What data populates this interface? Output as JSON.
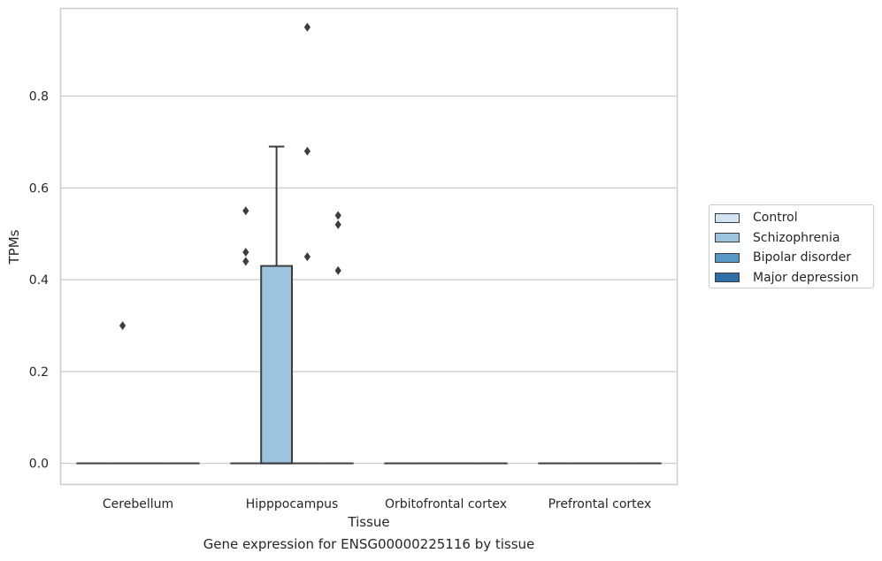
{
  "chart_data": {
    "type": "box",
    "xlabel": "Tissue",
    "ylabel": "TPMs",
    "caption": "Gene expression for ENSG00000225116 by tissue",
    "categories": [
      "Cerebellum",
      "Hipppocampus",
      "Orbitofrontal cortex",
      "Prefrontal cortex"
    ],
    "ylim": [
      -0.045,
      0.99
    ],
    "yticks": [
      0.0,
      0.2,
      0.4,
      0.6,
      0.8
    ],
    "ytick_labels": [
      "0.0",
      "0.2",
      "0.4",
      "0.6",
      "0.8"
    ],
    "grid": true,
    "legend_position": "right",
    "series": [
      {
        "name": "Control",
        "color": "#d2e3f2",
        "boxes": [
          {
            "category": "Cerebellum",
            "min": 0,
            "q1": 0,
            "median": 0,
            "q3": 0,
            "max": 0,
            "outliers": []
          },
          {
            "category": "Hipppocampus",
            "min": 0,
            "q1": 0,
            "median": 0,
            "q3": 0,
            "max": 0,
            "outliers": [
              0.55,
              0.46,
              0.44
            ]
          },
          {
            "category": "Orbitofrontal cortex",
            "min": 0,
            "q1": 0,
            "median": 0,
            "q3": 0,
            "max": 0,
            "outliers": []
          },
          {
            "category": "Prefrontal cortex",
            "min": 0,
            "q1": 0,
            "median": 0,
            "q3": 0,
            "max": 0,
            "outliers": []
          }
        ]
      },
      {
        "name": "Schizophrenia",
        "color": "#9dc4de",
        "boxes": [
          {
            "category": "Cerebellum",
            "min": 0,
            "q1": 0,
            "median": 0,
            "q3": 0,
            "max": 0,
            "outliers": [
              0.3
            ]
          },
          {
            "category": "Hipppocampus",
            "min": 0,
            "q1": 0,
            "median": 0,
            "q3": 0.43,
            "max": 0.69,
            "outliers": []
          },
          {
            "category": "Orbitofrontal cortex",
            "min": 0,
            "q1": 0,
            "median": 0,
            "q3": 0,
            "max": 0,
            "outliers": []
          },
          {
            "category": "Prefrontal cortex",
            "min": 0,
            "q1": 0,
            "median": 0,
            "q3": 0,
            "max": 0,
            "outliers": []
          }
        ]
      },
      {
        "name": "Bipolar disorder",
        "color": "#5898c7",
        "boxes": [
          {
            "category": "Cerebellum",
            "min": 0,
            "q1": 0,
            "median": 0,
            "q3": 0,
            "max": 0,
            "outliers": []
          },
          {
            "category": "Hipppocampus",
            "min": 0,
            "q1": 0,
            "median": 0,
            "q3": 0,
            "max": 0,
            "outliers": [
              0.95,
              0.68,
              0.45
            ]
          },
          {
            "category": "Orbitofrontal cortex",
            "min": 0,
            "q1": 0,
            "median": 0,
            "q3": 0,
            "max": 0,
            "outliers": []
          },
          {
            "category": "Prefrontal cortex",
            "min": 0,
            "q1": 0,
            "median": 0,
            "q3": 0,
            "max": 0,
            "outliers": []
          }
        ]
      },
      {
        "name": "Major depression",
        "color": "#2d6ea6",
        "boxes": [
          {
            "category": "Cerebellum",
            "min": 0,
            "q1": 0,
            "median": 0,
            "q3": 0,
            "max": 0,
            "outliers": []
          },
          {
            "category": "Hipppocampus",
            "min": 0,
            "q1": 0,
            "median": 0,
            "q3": 0,
            "max": 0,
            "outliers": [
              0.54,
              0.52,
              0.42
            ]
          },
          {
            "category": "Orbitofrontal cortex",
            "min": 0,
            "q1": 0,
            "median": 0,
            "q3": 0,
            "max": 0,
            "outliers": []
          },
          {
            "category": "Prefrontal cortex",
            "min": 0,
            "q1": 0,
            "median": 0,
            "q3": 0,
            "max": 0,
            "outliers": []
          }
        ]
      }
    ]
  }
}
